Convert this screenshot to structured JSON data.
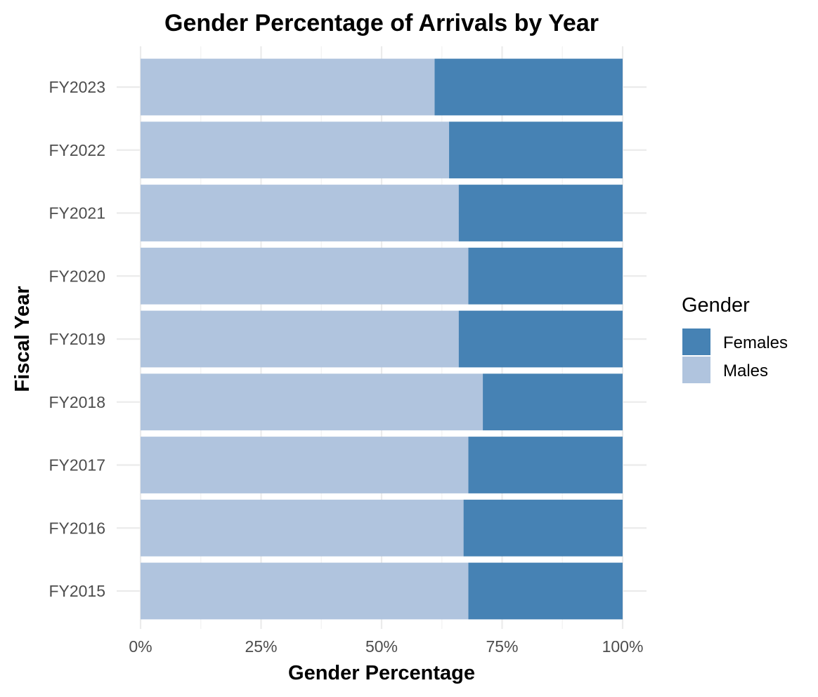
{
  "chart_data": {
    "type": "bar",
    "orientation": "horizontal",
    "stacked": true,
    "title": "Gender Percentage of Arrivals by Year",
    "xlabel": "Gender Percentage",
    "ylabel": "Fiscal Year",
    "xlim": [
      0,
      1
    ],
    "x_ticks": [
      0,
      0.25,
      0.5,
      0.75,
      1.0
    ],
    "x_tick_labels": [
      "0%",
      "25%",
      "50%",
      "75%",
      "100%"
    ],
    "categories": [
      "FY2015",
      "FY2016",
      "FY2017",
      "FY2018",
      "FY2019",
      "FY2020",
      "FY2021",
      "FY2022",
      "FY2023"
    ],
    "series": [
      {
        "name": "Males",
        "color": "#b0c4de",
        "values": [
          0.68,
          0.67,
          0.68,
          0.71,
          0.66,
          0.68,
          0.66,
          0.64,
          0.61
        ]
      },
      {
        "name": "Females",
        "color": "#4682b4",
        "values": [
          0.32,
          0.33,
          0.32,
          0.29,
          0.34,
          0.32,
          0.34,
          0.36,
          0.39
        ]
      }
    ],
    "legend": {
      "title": "Gender",
      "position": "right",
      "entries": [
        {
          "label": "Females",
          "color": "#4682b4"
        },
        {
          "label": "Males",
          "color": "#b0c4de"
        }
      ]
    },
    "grid": true
  }
}
